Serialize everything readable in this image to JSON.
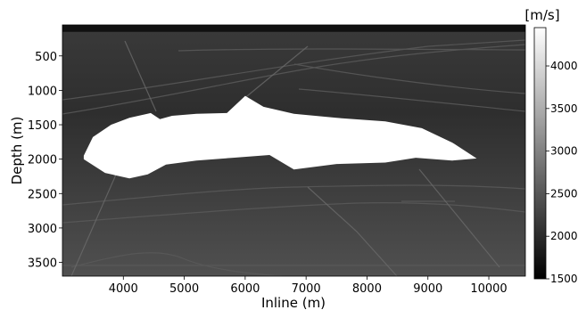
{
  "chart_data": {
    "type": "heatmap",
    "title": "",
    "xlabel": "Inline (m)",
    "ylabel": "Depth (m)",
    "xlim": [
      3000,
      10600
    ],
    "ylim": [
      3700,
      50
    ],
    "x_ticks": [
      4000,
      5000,
      6000,
      7000,
      8000,
      9000,
      10000
    ],
    "y_ticks": [
      500,
      1000,
      1500,
      2000,
      2500,
      3000,
      3500
    ],
    "colormap": "grayscale",
    "colorbar": {
      "label": "[m/s]",
      "range": [
        1500,
        4450
      ],
      "ticks": [
        1500,
        2000,
        2500,
        3000,
        3500,
        4000
      ]
    },
    "water_layer_bottom_depth": 150,
    "salt_body_velocity": 4450,
    "salt_body_outline": [
      [
        3350,
        1950
      ],
      [
        3500,
        1680
      ],
      [
        3800,
        1500
      ],
      [
        4100,
        1400
      ],
      [
        4450,
        1330
      ],
      [
        4600,
        1420
      ],
      [
        4800,
        1370
      ],
      [
        5200,
        1340
      ],
      [
        5700,
        1330
      ],
      [
        6000,
        1080
      ],
      [
        6300,
        1240
      ],
      [
        6800,
        1340
      ],
      [
        7500,
        1400
      ],
      [
        8300,
        1450
      ],
      [
        8900,
        1550
      ],
      [
        9400,
        1760
      ],
      [
        9800,
        1990
      ],
      [
        9400,
        2020
      ],
      [
        8800,
        1980
      ],
      [
        8300,
        2050
      ],
      [
        7500,
        2070
      ],
      [
        6800,
        2150
      ],
      [
        6400,
        1940
      ],
      [
        5800,
        1980
      ],
      [
        5200,
        2020
      ],
      [
        4700,
        2080
      ],
      [
        4400,
        2220
      ],
      [
        4100,
        2280
      ],
      [
        3700,
        2200
      ],
      [
        3350,
        2000
      ]
    ],
    "velocity_gradient": {
      "depth_top": 50,
      "depth_bottom": 3700,
      "velocity_top": 2050,
      "velocity_bottom": 2950
    }
  }
}
